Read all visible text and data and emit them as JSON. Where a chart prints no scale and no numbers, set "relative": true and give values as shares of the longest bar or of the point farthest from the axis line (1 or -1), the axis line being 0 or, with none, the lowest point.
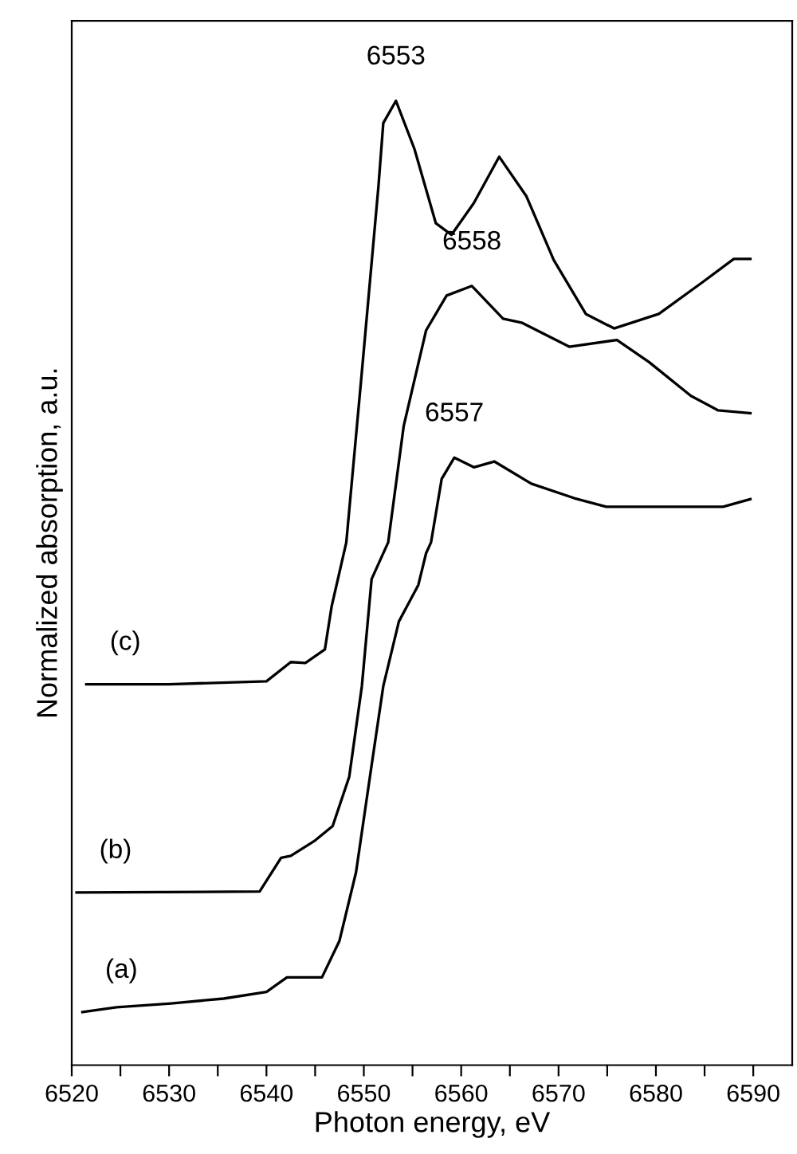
{
  "chart_data": {
    "type": "line",
    "relative": true,
    "xlabel": "Photon energy, eV",
    "ylabel": "Normalized absorption, a.u.",
    "xlim": [
      6520,
      6594
    ],
    "xticks": [
      6520,
      {
        "value": 6525,
        "label": null
      },
      6530,
      {
        "value": 6535,
        "label": null
      },
      6540,
      {
        "value": 6545,
        "label": null
      },
      6550,
      {
        "value": 6555,
        "label": null
      },
      6560,
      {
        "value": 6565,
        "label": null
      },
      6570,
      {
        "value": 6575,
        "label": null
      },
      6580,
      {
        "value": 6585,
        "label": null
      },
      6590
    ],
    "grid": false,
    "legend": false,
    "marker": "none",
    "line_style": "solid",
    "series": [
      {
        "name": "(a)",
        "color": "#000000",
        "x": [
          6521.1,
          6524.6,
          6530.2,
          6535.6,
          6540,
          6542.1,
          6544.3,
          6545.7,
          6547.5,
          6549.2,
          6550.8,
          6552,
          6553.6,
          6555.6,
          6556.4,
          6556.9,
          6558,
          6559.3,
          6561.3,
          6563.4,
          6567.2,
          6571.6,
          6574.9,
          6579.3,
          6586.9,
          6589.7
        ],
        "values": [
          0.055,
          0.06,
          0.064,
          0.069,
          0.076,
          0.091,
          0.091,
          0.091,
          0.129,
          0.2,
          0.311,
          0.393,
          0.46,
          0.498,
          0.531,
          0.542,
          0.608,
          0.63,
          0.62,
          0.626,
          0.603,
          0.588,
          0.579,
          0.579,
          0.579,
          0.587
        ]
      },
      {
        "name": "(b)",
        "color": "#000000",
        "x": [
          6520.5,
          6539.3,
          6541.5,
          6542.5,
          6545,
          6546.8,
          6548.5,
          6549.8,
          6550.8,
          6552.5,
          6554.1,
          6556.4,
          6558.5,
          6561.1,
          6564.3,
          6566.2,
          6571.1,
          6576,
          6579.3,
          6583.6,
          6586.4,
          6589.7
        ],
        "values": [
          0.179,
          0.18,
          0.215,
          0.217,
          0.233,
          0.248,
          0.299,
          0.393,
          0.504,
          0.542,
          0.663,
          0.762,
          0.798,
          0.808,
          0.774,
          0.77,
          0.745,
          0.752,
          0.729,
          0.694,
          0.679,
          0.676
        ]
      },
      {
        "name": "(c)",
        "color": "#000000",
        "x": [
          6521.5,
          6530,
          6540,
          6542.5,
          6544,
          6546,
          6546.7,
          6548.2,
          6549.8,
          6551.5,
          6552,
          6553.3,
          6555.2,
          6557.4,
          6559,
          6561.3,
          6563.9,
          6566.7,
          6569.5,
          6572.8,
          6575.7,
          6580.3,
          6584.8,
          6588,
          6589.7
        ],
        "values": [
          0.395,
          0.395,
          0.398,
          0.418,
          0.417,
          0.431,
          0.476,
          0.542,
          0.719,
          0.911,
          0.977,
          1.0,
          0.95,
          0.873,
          0.861,
          0.894,
          0.942,
          0.901,
          0.835,
          0.779,
          0.764,
          0.779,
          0.812,
          0.836,
          0.836
        ]
      }
    ],
    "annotations": [
      {
        "text": "6553",
        "x": 6553.3,
        "y": 1.0
      },
      {
        "text": "6558",
        "x": 6561.1,
        "y": 0.808
      },
      {
        "text": "6557",
        "x": 6559.3,
        "y": 0.63
      }
    ]
  }
}
